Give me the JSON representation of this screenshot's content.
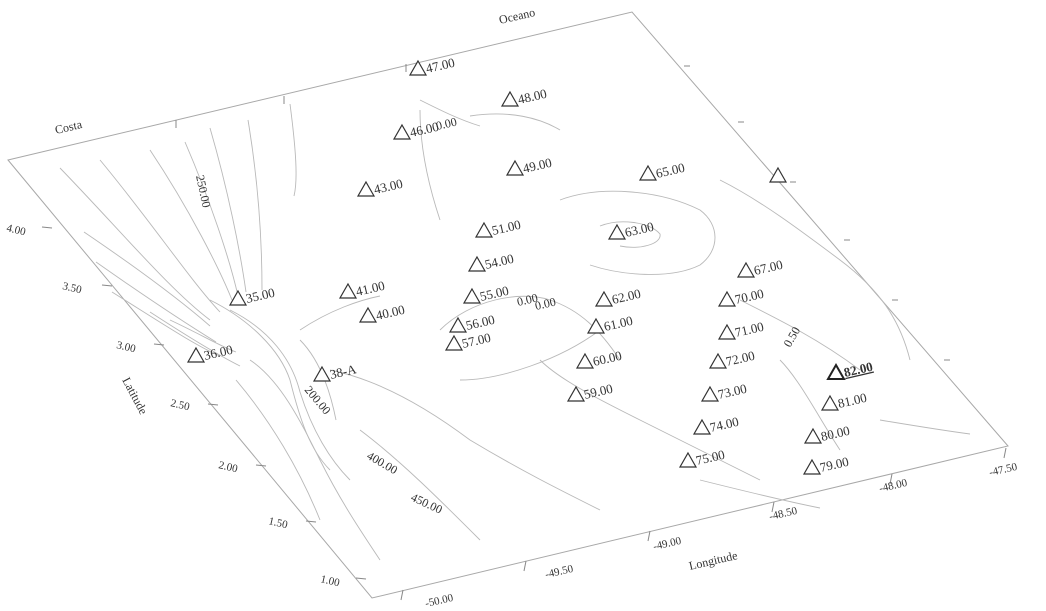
{
  "map": {
    "edge_labels": {
      "costa": "Costa",
      "oceano": "Oceano"
    },
    "x_axis": {
      "title": "Longitude",
      "ticks": [
        "-50.00",
        "-49.50",
        "-49.00",
        "-48.50",
        "-48.00",
        "-47.50"
      ]
    },
    "y_axis": {
      "title": "Latitude",
      "ticks": [
        "1.00",
        "1.50",
        "2.00",
        "2.50",
        "3.00",
        "3.50",
        "4.00"
      ]
    },
    "contour_labels": [
      "250.00",
      "0.00",
      "0.00",
      "0.00",
      "200.00",
      "400.00",
      "450.00",
      "0.50"
    ],
    "stations": [
      {
        "label": "47.00",
        "emphasis": "normal"
      },
      {
        "label": "48.00",
        "emphasis": "normal"
      },
      {
        "label": "46.00",
        "emphasis": "normal"
      },
      {
        "label": "43.00",
        "emphasis": "normal"
      },
      {
        "label": "49.00",
        "emphasis": "normal"
      },
      {
        "label": "65.00",
        "emphasis": "normal"
      },
      {
        "label": "",
        "emphasis": "normal"
      },
      {
        "label": "51.00",
        "emphasis": "normal"
      },
      {
        "label": "63.00",
        "emphasis": "normal"
      },
      {
        "label": "54.00",
        "emphasis": "normal"
      },
      {
        "label": "35.00",
        "emphasis": "normal"
      },
      {
        "label": "41.00",
        "emphasis": "normal"
      },
      {
        "label": "40.00",
        "emphasis": "normal"
      },
      {
        "label": "55.00",
        "emphasis": "normal"
      },
      {
        "label": "62.00",
        "emphasis": "normal"
      },
      {
        "label": "67.00",
        "emphasis": "normal"
      },
      {
        "label": "70.00",
        "emphasis": "normal"
      },
      {
        "label": "56.00",
        "emphasis": "normal"
      },
      {
        "label": "57.00",
        "emphasis": "normal"
      },
      {
        "label": "61.00",
        "emphasis": "normal"
      },
      {
        "label": "71.00",
        "emphasis": "normal"
      },
      {
        "label": "36.00",
        "emphasis": "normal"
      },
      {
        "label": "60.00",
        "emphasis": "normal"
      },
      {
        "label": "72.00",
        "emphasis": "normal"
      },
      {
        "label": "38-A",
        "emphasis": "normal"
      },
      {
        "label": "82.00",
        "emphasis": "bold"
      },
      {
        "label": "59.00",
        "emphasis": "normal"
      },
      {
        "label": "73.00",
        "emphasis": "normal"
      },
      {
        "label": "81.00",
        "emphasis": "normal"
      },
      {
        "label": "74.00",
        "emphasis": "normal"
      },
      {
        "label": "80.00",
        "emphasis": "normal"
      },
      {
        "label": "75.00",
        "emphasis": "normal"
      },
      {
        "label": "79.00",
        "emphasis": "normal"
      }
    ]
  }
}
